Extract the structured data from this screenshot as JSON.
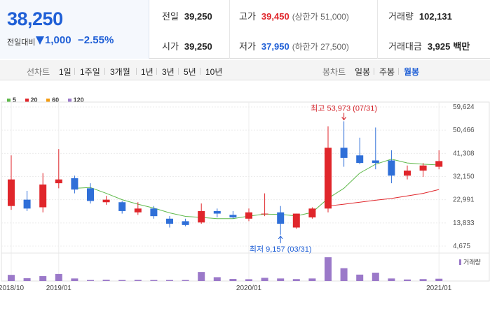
{
  "quote": {
    "current_price": "38,250",
    "change_label": "전일대비",
    "change_value": "1,000",
    "change_pct": "−2.55%",
    "prev_close_label": "전일",
    "prev_close": "39,250",
    "open_label": "시가",
    "open": "39,250",
    "high_label": "고가",
    "high": "39,450",
    "upper_limit": "(상한가 51,000)",
    "low_label": "저가",
    "low": "37,950",
    "lower_limit": "(하한가 27,500)",
    "volume_label": "거래량",
    "volume": "102,131",
    "amount_label": "거래대금",
    "amount": "3,925",
    "amount_unit": "백만"
  },
  "colors": {
    "up": "#e0262b",
    "down": "#2f6fd8",
    "ma5": "#5fb94b",
    "ma20": "#e0262b",
    "ma60": "#f39c12",
    "ma120": "#9b79c9",
    "volume": "#9b79c9"
  },
  "toolbar": {
    "line_chart": "선차트",
    "periods": [
      "1일",
      "1주일",
      "3개월",
      "1년",
      "3년",
      "5년",
      "10년"
    ],
    "candle_chart": "봉차트",
    "candle_periods": [
      "일봉",
      "주봉",
      "월봉"
    ],
    "active_candle": "월봉"
  },
  "legend": [
    {
      "label": "5",
      "color": "#5fb94b"
    },
    {
      "label": "20",
      "color": "#e0262b"
    },
    {
      "label": "60",
      "color": "#f39c12"
    },
    {
      "label": "120",
      "color": "#9b79c9"
    }
  ],
  "chart_data": {
    "type": "candlestick",
    "yticks": [
      59624,
      50466,
      41308,
      32150,
      22991,
      13833,
      4675
    ],
    "ytick_labels": [
      "59,624",
      "50,466",
      "41,308",
      "32,150",
      "22,991",
      "13,833",
      "4,675"
    ],
    "ylim": [
      4675,
      59624
    ],
    "xtick_labels": [
      "2018/10",
      "2019/01",
      "2020/01",
      "2021/01"
    ],
    "xtick_index": [
      0,
      3,
      15,
      27
    ],
    "high_annotation": "최고 53,973 (07/31)",
    "high_index": 21,
    "high_value": 53973,
    "low_annotation": "최저 9,157 (03/31)",
    "low_index": 17,
    "low_value": 9157,
    "volume_label": "거래량",
    "candles": [
      {
        "o": 20500,
        "h": 40500,
        "l": 19000,
        "c": 31000
      },
      {
        "o": 23000,
        "h": 26500,
        "l": 18500,
        "c": 19500
      },
      {
        "o": 20000,
        "h": 33500,
        "l": 18000,
        "c": 29000
      },
      {
        "o": 29500,
        "h": 43000,
        "l": 27500,
        "c": 31000
      },
      {
        "o": 31500,
        "h": 32500,
        "l": 25500,
        "c": 27000
      },
      {
        "o": 27500,
        "h": 29500,
        "l": 21500,
        "c": 22500
      },
      {
        "o": 22000,
        "h": 24500,
        "l": 21000,
        "c": 23000
      },
      {
        "o": 22000,
        "h": 22500,
        "l": 17500,
        "c": 18500
      },
      {
        "o": 18000,
        "h": 22000,
        "l": 17000,
        "c": 19500
      },
      {
        "o": 19500,
        "h": 20500,
        "l": 15500,
        "c": 16500
      },
      {
        "o": 15500,
        "h": 16500,
        "l": 12000,
        "c": 13500
      },
      {
        "o": 14500,
        "h": 15500,
        "l": 12500,
        "c": 13000
      },
      {
        "o": 14000,
        "h": 21500,
        "l": 13500,
        "c": 18500
      },
      {
        "o": 18500,
        "h": 19500,
        "l": 16000,
        "c": 17500
      },
      {
        "o": 17000,
        "h": 18500,
        "l": 15500,
        "c": 16000
      },
      {
        "o": 15500,
        "h": 19500,
        "l": 14500,
        "c": 18000
      },
      {
        "o": 17500,
        "h": 25500,
        "l": 16500,
        "c": 17500
      },
      {
        "o": 18000,
        "h": 20500,
        "l": 9157,
        "c": 13500
      },
      {
        "o": 12000,
        "h": 17500,
        "l": 11500,
        "c": 17500
      },
      {
        "o": 16000,
        "h": 20000,
        "l": 15500,
        "c": 19500
      },
      {
        "o": 19500,
        "h": 52000,
        "l": 18000,
        "c": 43500
      },
      {
        "o": 43500,
        "h": 53973,
        "l": 36000,
        "c": 39500
      },
      {
        "o": 40500,
        "h": 47500,
        "l": 37000,
        "c": 37500
      },
      {
        "o": 38500,
        "h": 51500,
        "l": 35000,
        "c": 37500
      },
      {
        "o": 38500,
        "h": 42500,
        "l": 29500,
        "c": 32500
      },
      {
        "o": 32500,
        "h": 36500,
        "l": 31000,
        "c": 34500
      },
      {
        "o": 34500,
        "h": 37500,
        "l": 32000,
        "c": 36500
      },
      {
        "o": 36000,
        "h": 42500,
        "l": 35000,
        "c": 38250
      }
    ],
    "ma5": [
      null,
      null,
      null,
      null,
      27500,
      27800,
      25500,
      23000,
      21200,
      19700,
      17800,
      16400,
      16000,
      15500,
      15500,
      16500,
      17300,
      17200,
      16600,
      18000,
      23500,
      27500,
      33500,
      37000,
      39000,
      37500,
      37000,
      36700
    ],
    "ma20": [
      null,
      null,
      null,
      null,
      null,
      null,
      null,
      null,
      null,
      null,
      null,
      null,
      null,
      null,
      null,
      null,
      null,
      null,
      null,
      null,
      20500,
      21200,
      22000,
      22800,
      23500,
      24500,
      25500,
      27000
    ],
    "volumes": [
      48,
      22,
      38,
      55,
      20,
      8,
      10,
      8,
      9,
      8,
      8,
      8,
      70,
      30,
      16,
      14,
      25,
      20,
      15,
      20,
      185,
      100,
      50,
      65,
      20,
      12,
      15,
      18
    ]
  }
}
